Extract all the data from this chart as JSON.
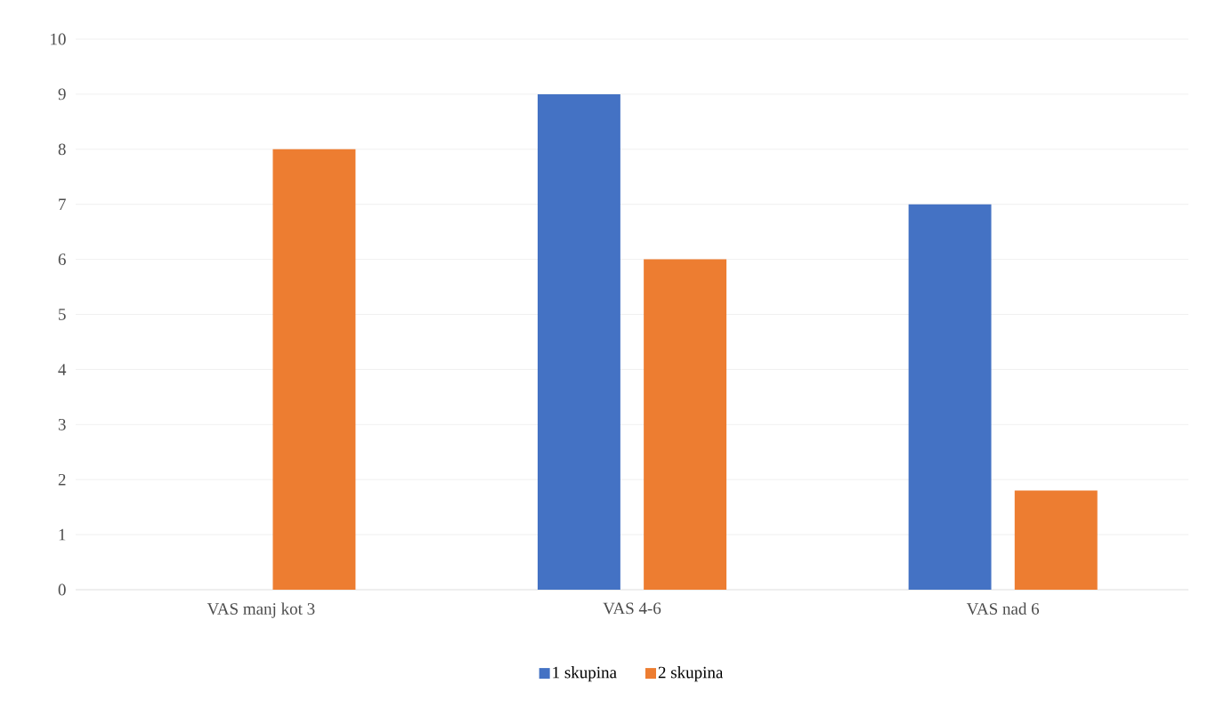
{
  "chart_data": {
    "type": "bar",
    "categories": [
      "VAS  manj kot 3",
      "VAS 4-6",
      "VAS nad 6"
    ],
    "series": [
      {
        "name": "1 skupina",
        "color": "#4472c4",
        "values": [
          0,
          9,
          7
        ]
      },
      {
        "name": "2 skupina",
        "color": "#ed7d31",
        "values": [
          8,
          6,
          1.8
        ]
      }
    ],
    "ylim": [
      0,
      10
    ],
    "yticks": [
      0,
      1,
      2,
      3,
      4,
      5,
      6,
      7,
      8,
      9,
      10
    ],
    "grid": "y",
    "legend": "bottom"
  }
}
